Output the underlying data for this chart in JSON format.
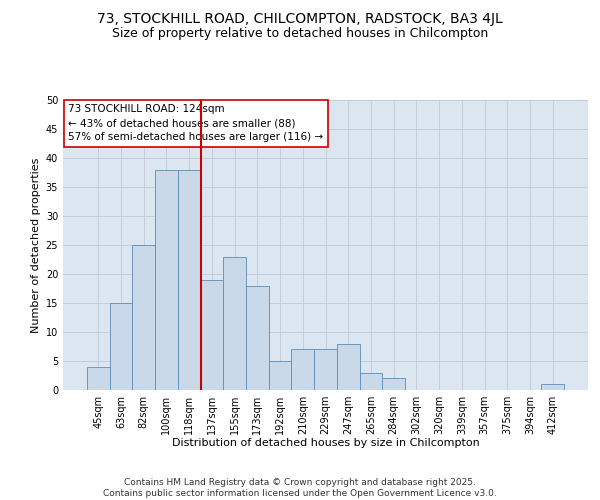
{
  "title_line1": "73, STOCKHILL ROAD, CHILCOMPTON, RADSTOCK, BA3 4JL",
  "title_line2": "Size of property relative to detached houses in Chilcompton",
  "xlabel": "Distribution of detached houses by size in Chilcompton",
  "ylabel": "Number of detached properties",
  "categories": [
    "45sqm",
    "63sqm",
    "82sqm",
    "100sqm",
    "118sqm",
    "137sqm",
    "155sqm",
    "173sqm",
    "192sqm",
    "210sqm",
    "229sqm",
    "247sqm",
    "265sqm",
    "284sqm",
    "302sqm",
    "320sqm",
    "339sqm",
    "357sqm",
    "375sqm",
    "394sqm",
    "412sqm"
  ],
  "values": [
    4,
    15,
    25,
    38,
    38,
    19,
    23,
    18,
    5,
    7,
    7,
    8,
    3,
    2,
    0,
    0,
    0,
    0,
    0,
    0,
    1
  ],
  "bar_color": "#c9d9ea",
  "bar_edge_color": "#5b8db8",
  "vline_x_index": 4,
  "vline_color": "#cc0000",
  "annotation_text": "73 STOCKHILL ROAD: 124sqm\n← 43% of detached houses are smaller (88)\n57% of semi-detached houses are larger (116) →",
  "annotation_box_color": "#ffffff",
  "annotation_box_edge": "#cc0000",
  "ylim": [
    0,
    50
  ],
  "yticks": [
    0,
    5,
    10,
    15,
    20,
    25,
    30,
    35,
    40,
    45,
    50
  ],
  "grid_color": "#c0c8d8",
  "background_color": "#dce6f0",
  "footer_text": "Contains HM Land Registry data © Crown copyright and database right 2025.\nContains public sector information licensed under the Open Government Licence v3.0.",
  "title_fontsize": 10,
  "subtitle_fontsize": 9,
  "axis_label_fontsize": 8,
  "tick_fontsize": 7,
  "annotation_fontsize": 7.5,
  "footer_fontsize": 6.5
}
